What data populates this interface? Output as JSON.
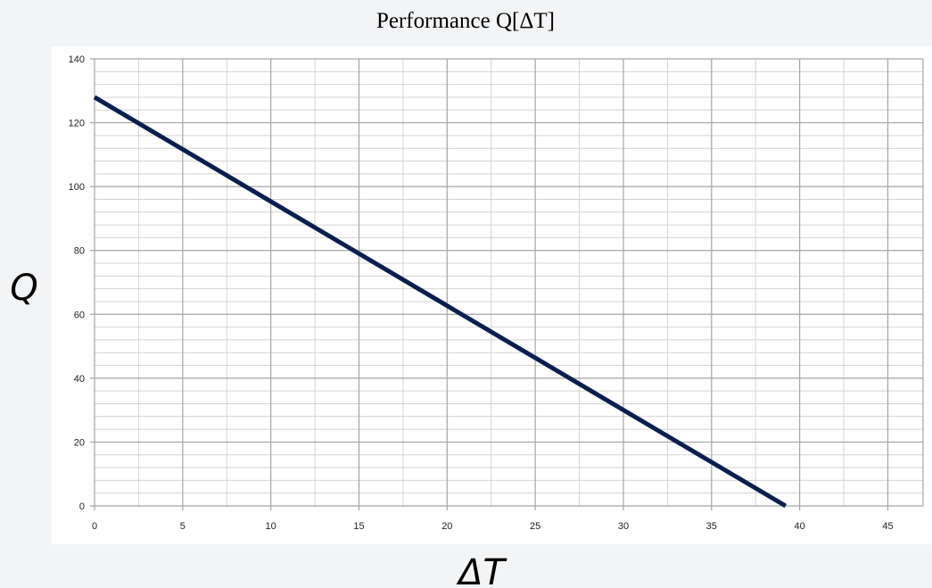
{
  "chart_data": {
    "type": "line",
    "title": "Performance Q[ΔT]",
    "xlabel": "ΔT",
    "ylabel": "Q",
    "xlim": [
      0,
      47
    ],
    "ylim": [
      0,
      140
    ],
    "x_ticks": [
      0,
      5,
      10,
      15,
      20,
      25,
      30,
      35,
      40,
      45
    ],
    "y_ticks": [
      0,
      20,
      40,
      60,
      80,
      100,
      120,
      140
    ],
    "x_minor_step": 2.5,
    "y_minor_step": 4,
    "grid": true,
    "legend": "none",
    "series": [
      {
        "x": [
          0,
          39.2
        ],
        "y": [
          128,
          0
        ],
        "color": "#0b1f4f"
      }
    ]
  },
  "colors": {
    "page_background": "#f3f4f6",
    "plot_background": "#ffffff",
    "major_grid": "#a6a6a6",
    "minor_grid": "#d4d4d4",
    "line": "#0b1f4f"
  }
}
